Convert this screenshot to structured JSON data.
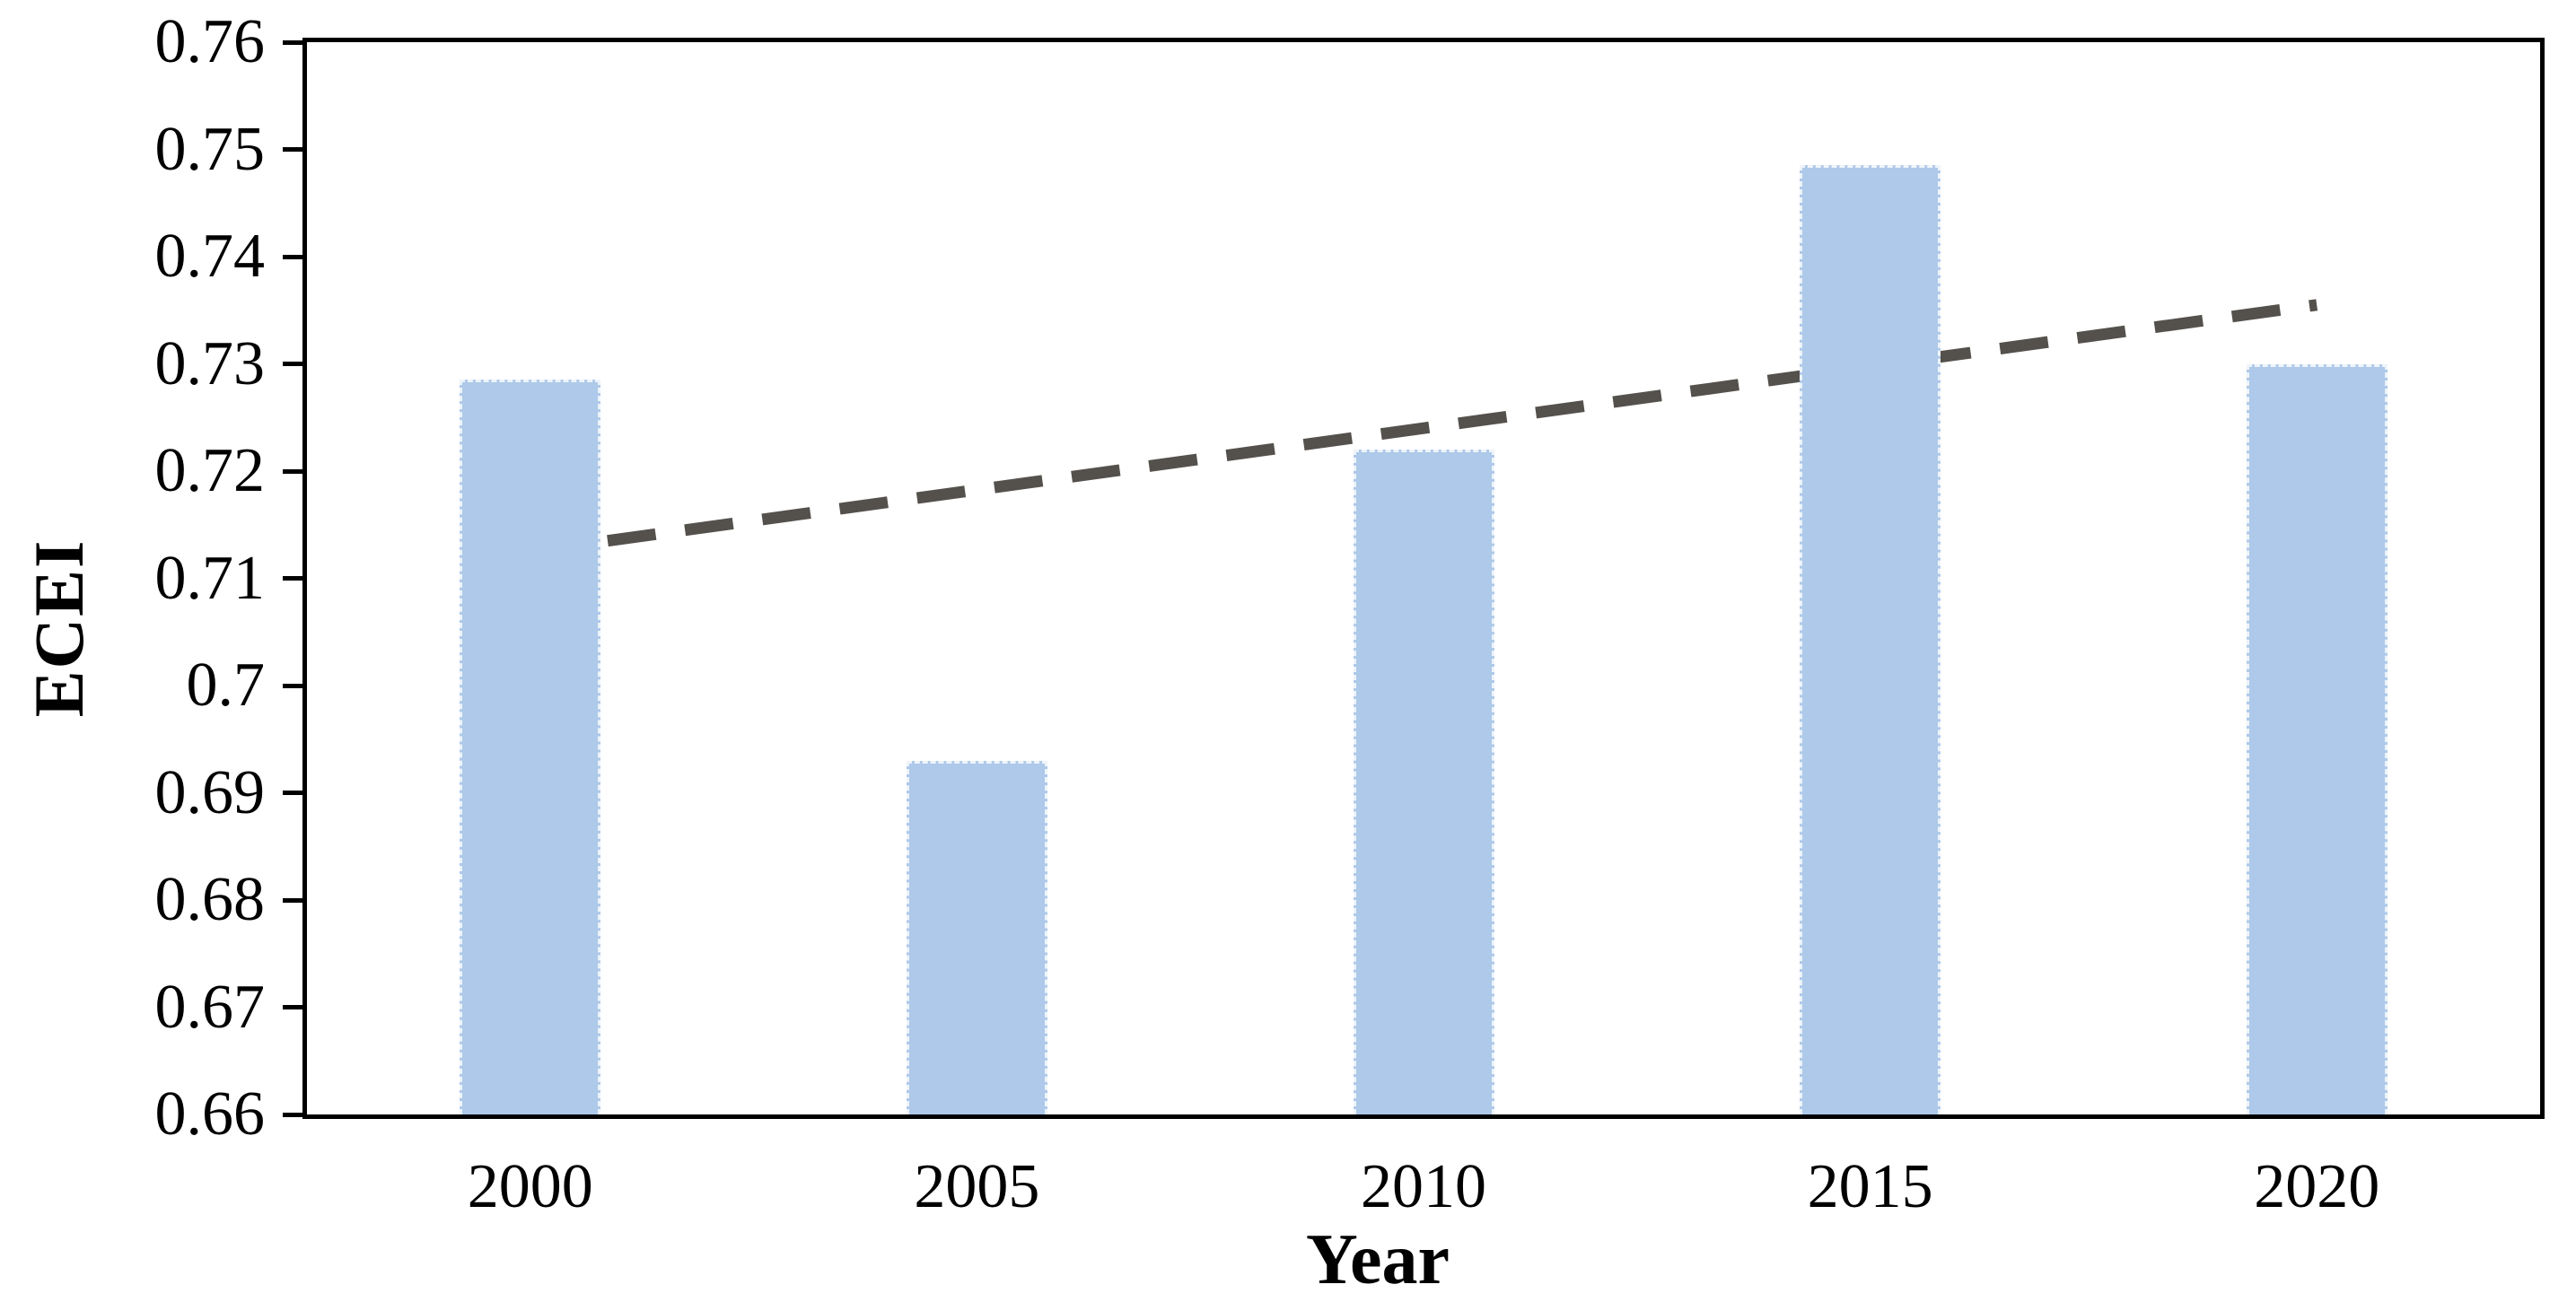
{
  "chart_data": {
    "type": "bar",
    "title": "",
    "categories": [
      "2000",
      "2005",
      "2010",
      "2015",
      "2020"
    ],
    "values": [
      0.7285,
      0.693,
      0.722,
      0.7485,
      0.73
    ],
    "series_name": "ECEI",
    "xlabel": "Year",
    "ylabel": "ECEI",
    "ylim": [
      0.66,
      0.76
    ],
    "ytick_step": 0.01,
    "ytick_labels": [
      "0.76",
      "0.75",
      "0.74",
      "0.73",
      "0.72",
      "0.71",
      "0.7",
      "0.69",
      "0.68",
      "0.67",
      "0.66"
    ],
    "grid": false,
    "legend": "none",
    "bar_color": "#aec9e9",
    "axis_color": "#000000",
    "trendline": {
      "type": "linear",
      "style": "dashed",
      "color": "#54514d",
      "start_value": 0.7125,
      "end_value": 0.7355
    }
  }
}
